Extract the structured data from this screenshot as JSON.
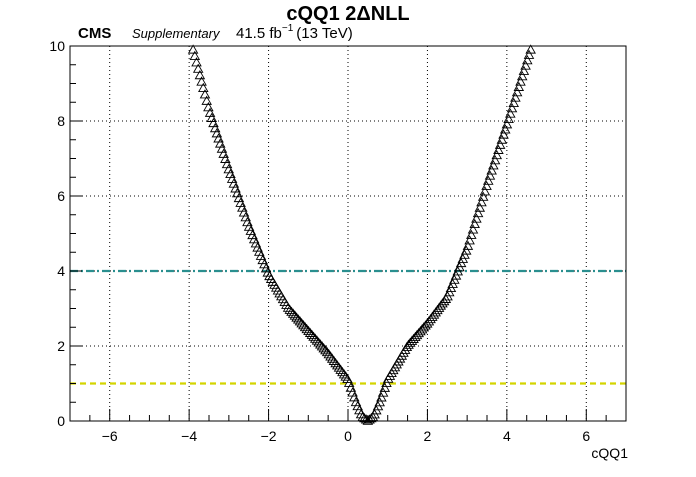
{
  "chart_data": {
    "type": "scatter",
    "title": "cQQ1 2ΔNLL",
    "xlabel": "cQQ1",
    "ylabel": "",
    "xlim": [
      -7,
      7
    ],
    "ylim": [
      0,
      10
    ],
    "xticks": [
      -6,
      -4,
      -2,
      0,
      2,
      4,
      6
    ],
    "yticks": [
      0,
      2,
      4,
      6,
      8,
      10
    ],
    "grid": true,
    "marker": "open-triangle",
    "colors": {
      "marker": "#000000",
      "line_4": "#2a8f8f",
      "line_1": "#d4d400",
      "grid": "#000000"
    },
    "reference_lines": [
      {
        "y": 4,
        "style": "dash-dot",
        "color": "#2a8f8f"
      },
      {
        "y": 1,
        "style": "dashed",
        "color": "#d4d400"
      }
    ],
    "curve_anchors": {
      "x": [
        -3.9,
        -3.5,
        -3.0,
        -2.5,
        -2.0,
        -1.5,
        -1.0,
        -0.5,
        0.0,
        0.2,
        0.35,
        0.5,
        0.65,
        0.8,
        1.0,
        1.5,
        2.0,
        2.5,
        3.0,
        3.5,
        4.0,
        4.6
      ],
      "y": [
        9.9,
        8.3,
        6.7,
        5.2,
        3.9,
        3.0,
        2.4,
        1.8,
        1.1,
        0.5,
        0.12,
        0.0,
        0.12,
        0.5,
        1.1,
        2.0,
        2.6,
        3.3,
        4.6,
        6.3,
        7.9,
        9.9
      ]
    },
    "n_points": 200
  },
  "labels": {
    "experiment": "CMS",
    "status": "Supplementary",
    "lumi_value": "41.5 fb",
    "lumi_exp": "−1",
    "energy": "(13 TeV)"
  }
}
